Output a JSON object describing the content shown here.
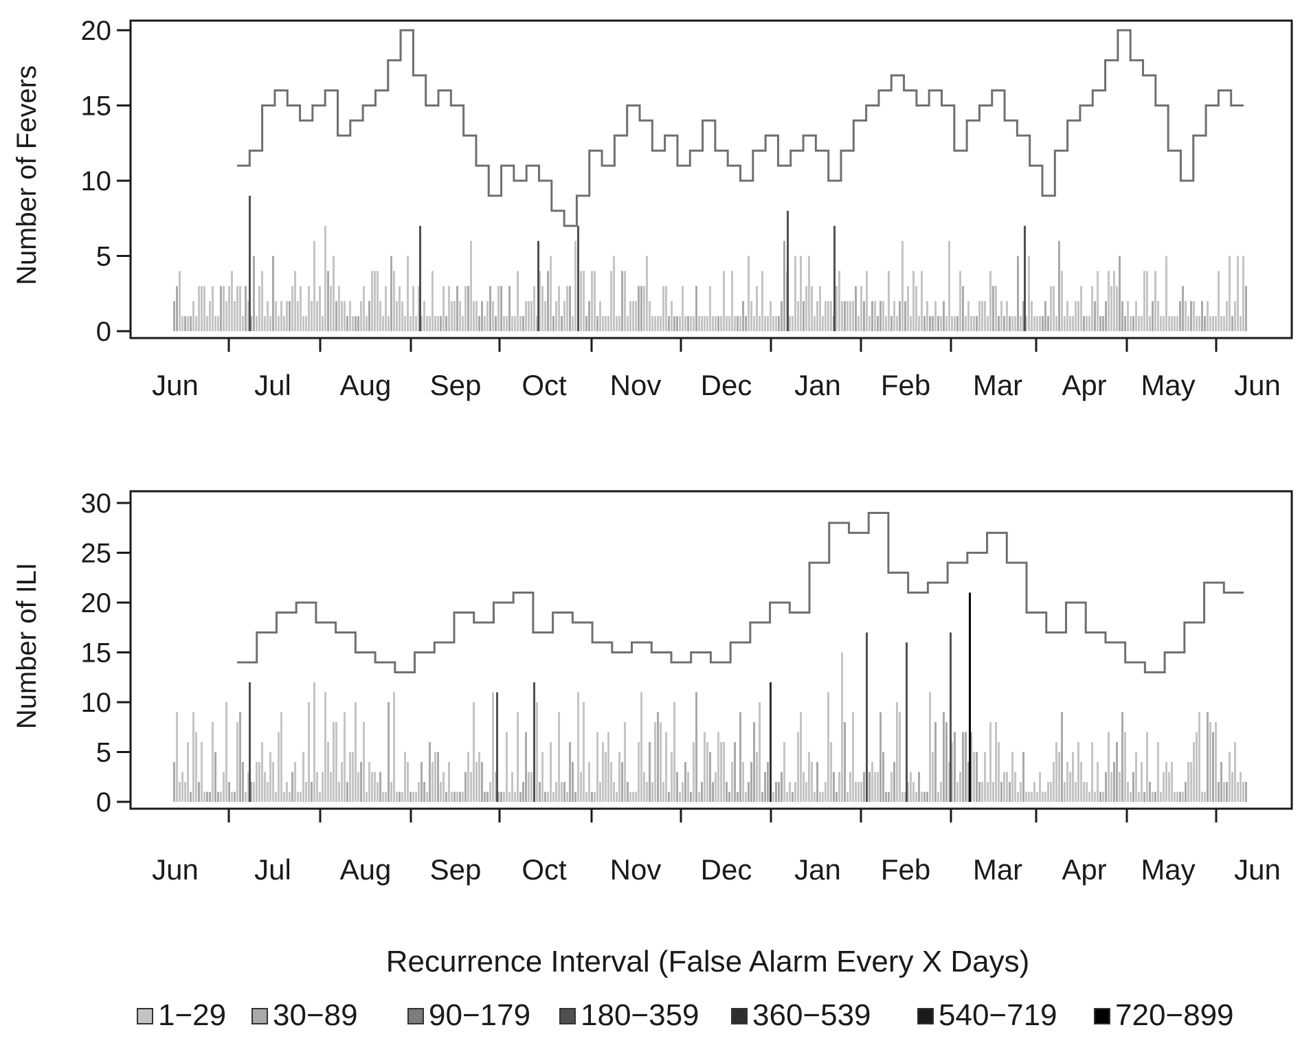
{
  "colors": {
    "axis": "#1a1a1a",
    "line": "#6f6f6f",
    "bins": [
      "#c4c4c4",
      "#a9a9a9",
      "#7c7c7c",
      "#505050",
      "#2e2e2e",
      "#1a1a1a",
      "#000000"
    ]
  },
  "legend": {
    "title": "Recurrence Interval (False Alarm Every X Days)",
    "items": [
      "1−29",
      "30−89",
      "90−179",
      "180−359",
      "360−539",
      "540−719",
      "720−899"
    ]
  },
  "chart_data": [
    {
      "type": "bar+step-line",
      "ylabel": "Number of Fevers",
      "ylim": [
        0,
        20
      ],
      "yticks": [
        0,
        5,
        10,
        15,
        20
      ],
      "months": [
        "Jun",
        "Jul",
        "Aug",
        "Sep",
        "Oct",
        "Nov",
        "Dec",
        "Jan",
        "Feb",
        "Mar",
        "Apr",
        "May",
        "Jun"
      ],
      "line_steps": [
        [
          "Jul",
          11
        ],
        [
          "Jul",
          12
        ],
        [
          "Jul",
          15
        ],
        [
          "Jul",
          16
        ],
        [
          "Jul",
          15
        ],
        [
          "Jul",
          14
        ],
        [
          "Jul",
          15
        ],
        [
          "Jul",
          16
        ],
        [
          "Aug",
          13
        ],
        [
          "Aug",
          14
        ],
        [
          "Aug",
          15
        ],
        [
          "Aug",
          16
        ],
        [
          "Aug",
          18
        ],
        [
          "Aug",
          20
        ],
        [
          "Aug",
          17
        ],
        [
          "Aug",
          15
        ],
        [
          "Aug",
          16
        ],
        [
          "Aug",
          15
        ],
        [
          "Sep",
          13
        ],
        [
          "Sep",
          11
        ],
        [
          "Sep",
          9
        ],
        [
          "Sep",
          11
        ],
        [
          "Sep",
          10
        ],
        [
          "Sep",
          11
        ],
        [
          "Oct",
          10
        ],
        [
          "Oct",
          8
        ],
        [
          "Oct",
          7
        ],
        [
          "Oct",
          9
        ],
        [
          "Oct",
          12
        ],
        [
          "Oct",
          11
        ],
        [
          "Oct",
          13
        ],
        [
          "Nov",
          15
        ],
        [
          "Nov",
          14
        ],
        [
          "Nov",
          12
        ],
        [
          "Nov",
          13
        ],
        [
          "Nov",
          11
        ],
        [
          "Nov",
          12
        ],
        [
          "Nov",
          14
        ],
        [
          "Nov",
          12
        ],
        [
          "Dec",
          11
        ],
        [
          "Dec",
          10
        ],
        [
          "Dec",
          12
        ],
        [
          "Dec",
          13
        ],
        [
          "Dec",
          11
        ],
        [
          "Dec",
          12
        ],
        [
          "Dec",
          13
        ],
        [
          "Jan",
          12
        ],
        [
          "Jan",
          10
        ],
        [
          "Jan",
          12
        ],
        [
          "Jan",
          14
        ],
        [
          "Jan",
          15
        ],
        [
          "Jan",
          16
        ],
        [
          "Feb",
          17
        ],
        [
          "Feb",
          16
        ],
        [
          "Feb",
          15
        ],
        [
          "Feb",
          16
        ],
        [
          "Feb",
          15
        ],
        [
          "Mar",
          12
        ],
        [
          "Mar",
          14
        ],
        [
          "Mar",
          15
        ],
        [
          "Mar",
          16
        ],
        [
          "Mar",
          14
        ],
        [
          "Mar",
          13
        ],
        [
          "Mar",
          11
        ],
        [
          "Apr",
          9
        ],
        [
          "Apr",
          12
        ],
        [
          "Apr",
          14
        ],
        [
          "Apr",
          15
        ],
        [
          "Apr",
          16
        ],
        [
          "Apr",
          18
        ],
        [
          "May",
          20
        ],
        [
          "May",
          18
        ],
        [
          "May",
          17
        ],
        [
          "May",
          15
        ],
        [
          "May",
          12
        ],
        [
          "May",
          10
        ],
        [
          "May",
          13
        ],
        [
          "Jun",
          15
        ],
        [
          "Jun",
          16
        ],
        [
          "Jun",
          15
        ]
      ]
    },
    {
      "type": "bar+step-line",
      "ylabel": "Number of ILI",
      "ylim": [
        0,
        30
      ],
      "yticks": [
        0,
        5,
        10,
        15,
        20,
        25,
        30
      ],
      "months": [
        "Jun",
        "Jul",
        "Aug",
        "Sep",
        "Oct",
        "Nov",
        "Dec",
        "Jan",
        "Feb",
        "Mar",
        "Apr",
        "May",
        "Jun"
      ],
      "line_steps": [
        [
          "Jul",
          14
        ],
        [
          "Jul",
          17
        ],
        [
          "Jul",
          19
        ],
        [
          "Jul",
          20
        ],
        [
          "Jul",
          18
        ],
        [
          "Aug",
          17
        ],
        [
          "Aug",
          15
        ],
        [
          "Aug",
          14
        ],
        [
          "Aug",
          13
        ],
        [
          "Sep",
          15
        ],
        [
          "Sep",
          16
        ],
        [
          "Sep",
          19
        ],
        [
          "Sep",
          18
        ],
        [
          "Oct",
          20
        ],
        [
          "Oct",
          21
        ],
        [
          "Oct",
          17
        ],
        [
          "Oct",
          19
        ],
        [
          "Oct",
          18
        ],
        [
          "Nov",
          16
        ],
        [
          "Nov",
          15
        ],
        [
          "Nov",
          16
        ],
        [
          "Nov",
          15
        ],
        [
          "Dec",
          14
        ],
        [
          "Dec",
          15
        ],
        [
          "Dec",
          14
        ],
        [
          "Dec",
          16
        ],
        [
          "Jan",
          18
        ],
        [
          "Jan",
          20
        ],
        [
          "Jan",
          19
        ],
        [
          "Jan",
          24
        ],
        [
          "Feb",
          28
        ],
        [
          "Feb",
          27
        ],
        [
          "Feb",
          29
        ],
        [
          "Feb",
          23
        ],
        [
          "Feb",
          21
        ],
        [
          "Feb",
          22
        ],
        [
          "Mar",
          24
        ],
        [
          "Mar",
          25
        ],
        [
          "Mar",
          27
        ],
        [
          "Mar",
          24
        ],
        [
          "Apr",
          19
        ],
        [
          "Apr",
          17
        ],
        [
          "Apr",
          20
        ],
        [
          "Apr",
          17
        ],
        [
          "May",
          16
        ],
        [
          "May",
          14
        ],
        [
          "May",
          13
        ],
        [
          "May",
          15
        ],
        [
          "Jun",
          18
        ],
        [
          "Jun",
          22
        ],
        [
          "Jun",
          21
        ]
      ]
    }
  ]
}
